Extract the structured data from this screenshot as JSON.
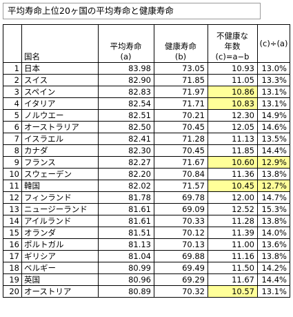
{
  "title": "平均寿命上位20ヶ国の平均寿命と健康寿命",
  "headers": {
    "country": "国名",
    "avg_line1": "平均寿命",
    "avg_line2": "(a)",
    "healthy_line1": "健康寿命",
    "healthy_line2": "(b)",
    "unhealthy_line1": "不健康な",
    "unhealthy_line2": "年数",
    "unhealthy_line3": "(c)=a−b",
    "ratio": "(c)÷(a)"
  },
  "highlight_color": "#ffff99",
  "rows": [
    {
      "rank": "1",
      "country": "日本",
      "avg": "83.98",
      "healthy": "73.05",
      "unhealthy": "10.93",
      "ratio": "13.0%",
      "hl_c": false,
      "hl_r": false
    },
    {
      "rank": "2",
      "country": "スイス",
      "avg": "82.90",
      "healthy": "71.85",
      "unhealthy": "11.05",
      "ratio": "13.3%",
      "hl_c": false,
      "hl_r": false
    },
    {
      "rank": "3",
      "country": "スペイン",
      "avg": "82.83",
      "healthy": "71.97",
      "unhealthy": "10.86",
      "ratio": "13.1%",
      "hl_c": true,
      "hl_r": false
    },
    {
      "rank": "4",
      "country": "イタリア",
      "avg": "82.54",
      "healthy": "71.71",
      "unhealthy": "10.83",
      "ratio": "13.1%",
      "hl_c": true,
      "hl_r": false
    },
    {
      "rank": "5",
      "country": "ノルウエー",
      "avg": "82.51",
      "healthy": "70.21",
      "unhealthy": "12.30",
      "ratio": "14.9%",
      "hl_c": false,
      "hl_r": false
    },
    {
      "rank": "6",
      "country": "オーストラリア",
      "avg": "82.50",
      "healthy": "70.45",
      "unhealthy": "12.05",
      "ratio": "14.6%",
      "hl_c": false,
      "hl_r": false
    },
    {
      "rank": "7",
      "country": "イスラエル",
      "avg": "82.41",
      "healthy": "71.28",
      "unhealthy": "11.13",
      "ratio": "13.5%",
      "hl_c": false,
      "hl_r": false
    },
    {
      "rank": "8",
      "country": "カナダ",
      "avg": "82.30",
      "healthy": "70.45",
      "unhealthy": "11.85",
      "ratio": "14.4%",
      "hl_c": false,
      "hl_r": false
    },
    {
      "rank": "9",
      "country": "フランス",
      "avg": "82.27",
      "healthy": "71.67",
      "unhealthy": "10.60",
      "ratio": "12.9%",
      "hl_c": true,
      "hl_r": true
    },
    {
      "rank": "10",
      "country": "スウェーデン",
      "avg": "82.20",
      "healthy": "70.84",
      "unhealthy": "11.36",
      "ratio": "13.8%",
      "hl_c": false,
      "hl_r": false
    },
    {
      "rank": "11",
      "country": "韓国",
      "avg": "82.02",
      "healthy": "71.57",
      "unhealthy": "10.45",
      "ratio": "12.7%",
      "hl_c": true,
      "hl_r": true
    },
    {
      "rank": "12",
      "country": "フィンランド",
      "avg": "81.78",
      "healthy": "69.78",
      "unhealthy": "12.00",
      "ratio": "14.7%",
      "hl_c": false,
      "hl_r": false
    },
    {
      "rank": "13",
      "country": "ニュージーランド",
      "avg": "81.61",
      "healthy": "69.09",
      "unhealthy": "12.52",
      "ratio": "15.3%",
      "hl_c": false,
      "hl_r": false
    },
    {
      "rank": "14",
      "country": "アイルランド",
      "avg": "81.61",
      "healthy": "70.33",
      "unhealthy": "11.28",
      "ratio": "13.8%",
      "hl_c": false,
      "hl_r": false
    },
    {
      "rank": "15",
      "country": "オランダ",
      "avg": "81.51",
      "healthy": "70.12",
      "unhealthy": "11.39",
      "ratio": "14.0%",
      "hl_c": false,
      "hl_r": false
    },
    {
      "rank": "16",
      "country": "ポルトガル",
      "avg": "81.13",
      "healthy": "70.13",
      "unhealthy": "11.00",
      "ratio": "13.6%",
      "hl_c": false,
      "hl_r": false
    },
    {
      "rank": "17",
      "country": "ギリシア",
      "avg": "81.04",
      "healthy": "69.88",
      "unhealthy": "11.16",
      "ratio": "13.8%",
      "hl_c": false,
      "hl_r": false
    },
    {
      "rank": "18",
      "country": "ベルギー",
      "avg": "80.99",
      "healthy": "69.49",
      "unhealthy": "11.50",
      "ratio": "14.2%",
      "hl_c": false,
      "hl_r": false
    },
    {
      "rank": "19",
      "country": "英国",
      "avg": "80.96",
      "healthy": "69.29",
      "unhealthy": "11.67",
      "ratio": "14.4%",
      "hl_c": false,
      "hl_r": false
    },
    {
      "rank": "20",
      "country": "オーストリア",
      "avg": "80.89",
      "healthy": "70.32",
      "unhealthy": "10.57",
      "ratio": "13.1%",
      "hl_c": true,
      "hl_r": false
    }
  ]
}
